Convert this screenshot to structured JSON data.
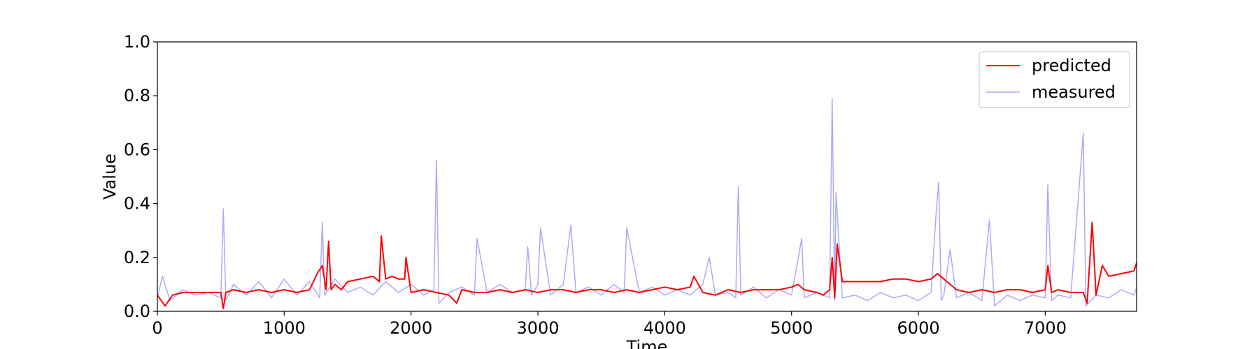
{
  "chart_data": {
    "type": "line",
    "title": "",
    "xlabel": "Time",
    "ylabel": "Value",
    "xlim": [
      0,
      7720
    ],
    "ylim": [
      0.0,
      1.0
    ],
    "xticks": [
      0,
      1000,
      2000,
      3000,
      4000,
      5000,
      6000,
      7000
    ],
    "xtick_labels": [
      "0",
      "1000",
      "2000",
      "3000",
      "4000",
      "5000",
      "6000",
      "7000"
    ],
    "yticks": [
      0.0,
      0.2,
      0.4,
      0.6,
      0.8,
      1.0
    ],
    "ytick_labels": [
      "0.0",
      "0.2",
      "0.4",
      "0.6",
      "0.8",
      "1.0"
    ],
    "grid": false,
    "legend_position": "top-right",
    "series": [
      {
        "name": "predicted",
        "color": "#ff0000",
        "x": [
          0,
          60,
          120,
          200,
          300,
          400,
          500,
          520,
          540,
          600,
          700,
          800,
          900,
          1000,
          1100,
          1200,
          1260,
          1300,
          1330,
          1350,
          1370,
          1400,
          1450,
          1500,
          1600,
          1700,
          1750,
          1765,
          1800,
          1850,
          1900,
          1950,
          1960,
          2000,
          2100,
          2200,
          2300,
          2360,
          2400,
          2500,
          2600,
          2700,
          2800,
          2900,
          3000,
          3100,
          3200,
          3300,
          3400,
          3500,
          3600,
          3700,
          3800,
          3900,
          4000,
          4100,
          4200,
          4230,
          4300,
          4400,
          4500,
          4600,
          4700,
          4800,
          4900,
          5000,
          5050,
          5100,
          5200,
          5250,
          5300,
          5320,
          5340,
          5360,
          5400,
          5500,
          5600,
          5700,
          5800,
          5900,
          6000,
          6100,
          6150,
          6200,
          6300,
          6400,
          6500,
          6600,
          6700,
          6800,
          6900,
          7000,
          7020,
          7050,
          7100,
          7200,
          7300,
          7330,
          7370,
          7400,
          7450,
          7500,
          7600,
          7700,
          7720
        ],
        "y": [
          0.06,
          0.02,
          0.06,
          0.07,
          0.07,
          0.07,
          0.07,
          0.01,
          0.07,
          0.08,
          0.07,
          0.08,
          0.07,
          0.08,
          0.07,
          0.08,
          0.14,
          0.17,
          0.08,
          0.26,
          0.08,
          0.1,
          0.08,
          0.11,
          0.12,
          0.13,
          0.11,
          0.28,
          0.12,
          0.13,
          0.12,
          0.12,
          0.2,
          0.07,
          0.08,
          0.07,
          0.06,
          0.03,
          0.08,
          0.07,
          0.07,
          0.08,
          0.07,
          0.08,
          0.07,
          0.08,
          0.08,
          0.07,
          0.08,
          0.08,
          0.07,
          0.08,
          0.07,
          0.08,
          0.09,
          0.08,
          0.09,
          0.13,
          0.07,
          0.06,
          0.08,
          0.07,
          0.08,
          0.08,
          0.08,
          0.09,
          0.1,
          0.08,
          0.07,
          0.06,
          0.08,
          0.2,
          0.05,
          0.25,
          0.11,
          0.11,
          0.11,
          0.11,
          0.12,
          0.12,
          0.11,
          0.12,
          0.14,
          0.12,
          0.08,
          0.07,
          0.08,
          0.07,
          0.08,
          0.08,
          0.07,
          0.08,
          0.17,
          0.07,
          0.08,
          0.07,
          0.07,
          0.03,
          0.33,
          0.06,
          0.17,
          0.13,
          0.14,
          0.15,
          0.18
        ]
      },
      {
        "name": "measured",
        "color": "#aaaaff",
        "x": [
          0,
          40,
          100,
          200,
          300,
          400,
          500,
          520,
          540,
          600,
          700,
          800,
          900,
          1000,
          1100,
          1200,
          1280,
          1300,
          1320,
          1400,
          1500,
          1600,
          1700,
          1800,
          1900,
          2000,
          2100,
          2180,
          2200,
          2220,
          2300,
          2400,
          2500,
          2520,
          2600,
          2700,
          2800,
          2900,
          2920,
          2950,
          3000,
          3020,
          3100,
          3200,
          3260,
          3300,
          3400,
          3500,
          3600,
          3680,
          3700,
          3800,
          3900,
          4000,
          4100,
          4200,
          4300,
          4350,
          4400,
          4500,
          4560,
          4580,
          4600,
          4700,
          4800,
          4900,
          5000,
          5080,
          5100,
          5200,
          5300,
          5320,
          5340,
          5350,
          5400,
          5500,
          5600,
          5700,
          5800,
          5900,
          6000,
          6100,
          6140,
          6160,
          6180,
          6200,
          6250,
          6300,
          6400,
          6500,
          6560,
          6600,
          6700,
          6800,
          6900,
          7000,
          7020,
          7050,
          7100,
          7200,
          7280,
          7300,
          7320,
          7400,
          7500,
          7600,
          7700,
          7720
        ],
        "y": [
          0.05,
          0.13,
          0.04,
          0.08,
          0.06,
          0.07,
          0.05,
          0.38,
          0.04,
          0.1,
          0.06,
          0.11,
          0.05,
          0.12,
          0.06,
          0.11,
          0.05,
          0.33,
          0.06,
          0.12,
          0.07,
          0.09,
          0.06,
          0.11,
          0.07,
          0.1,
          0.06,
          0.08,
          0.56,
          0.03,
          0.07,
          0.09,
          0.06,
          0.27,
          0.07,
          0.1,
          0.07,
          0.08,
          0.24,
          0.06,
          0.1,
          0.31,
          0.06,
          0.1,
          0.32,
          0.07,
          0.09,
          0.06,
          0.1,
          0.07,
          0.31,
          0.07,
          0.09,
          0.06,
          0.08,
          0.06,
          0.1,
          0.2,
          0.06,
          0.07,
          0.05,
          0.46,
          0.06,
          0.09,
          0.05,
          0.08,
          0.06,
          0.27,
          0.05,
          0.07,
          0.05,
          0.79,
          0.04,
          0.44,
          0.05,
          0.06,
          0.04,
          0.07,
          0.05,
          0.06,
          0.04,
          0.07,
          0.37,
          0.48,
          0.04,
          0.06,
          0.23,
          0.05,
          0.07,
          0.04,
          0.34,
          0.02,
          0.06,
          0.04,
          0.06,
          0.05,
          0.47,
          0.04,
          0.06,
          0.05,
          0.54,
          0.66,
          0.02,
          0.06,
          0.05,
          0.08,
          0.06,
          0.09
        ]
      }
    ]
  }
}
